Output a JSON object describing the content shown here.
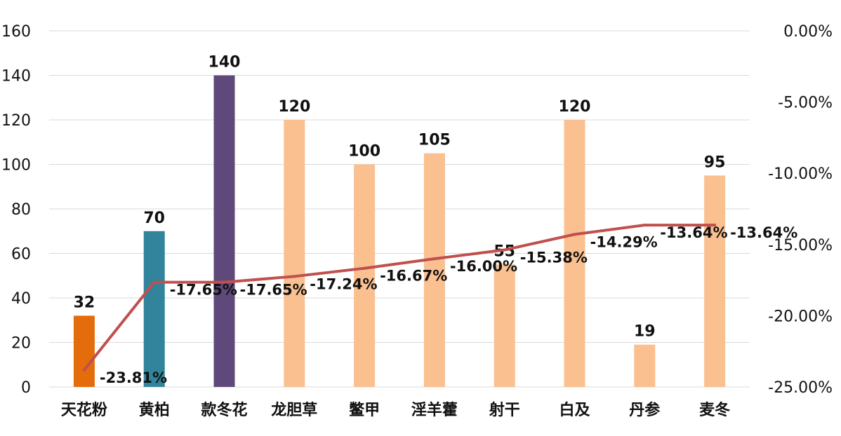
{
  "chart_data": {
    "type": "bar",
    "categories": [
      "天花粉",
      "黄柏",
      "款冬花",
      "龙胆草",
      "鳖甲",
      "淫羊藿",
      "射干",
      "白及",
      "丹参",
      "麦冬"
    ],
    "series": [
      {
        "axis": "left",
        "chart": "bar",
        "values": [
          32,
          70,
          140,
          120,
          100,
          105,
          55,
          120,
          19,
          95
        ],
        "value_labels": [
          "32",
          "70",
          "140",
          "120",
          "100",
          "105",
          "55",
          "120",
          "19",
          "95"
        ],
        "colors": [
          "#e46c0a",
          "#31849b",
          "#5f497a",
          "#fac090",
          "#fac090",
          "#fac090",
          "#fac090",
          "#fac090",
          "#fac090",
          "#fac090"
        ]
      },
      {
        "axis": "right",
        "chart": "line",
        "values": [
          -23.81,
          -17.65,
          -17.65,
          -17.24,
          -16.67,
          -16.0,
          -15.38,
          -14.29,
          -13.64,
          -13.64
        ],
        "value_labels": [
          "-23.81%",
          "-17.65%",
          "-17.65%",
          "-17.24%",
          "-16.67%",
          "-16.00%",
          "-15.38%",
          "-14.29%",
          "-13.64%",
          "-13.64%"
        ],
        "color": "#c0504d"
      }
    ],
    "y_left": {
      "ylim": [
        0,
        160
      ],
      "ticks": [
        "0",
        "20",
        "40",
        "60",
        "80",
        "100",
        "120",
        "140",
        "160"
      ]
    },
    "y_right": {
      "ylim": [
        -25,
        0
      ],
      "ticks": [
        "-25.00%",
        "-20.00%",
        "-15.00%",
        "-10.00%",
        "-5.00%",
        "0.00%"
      ]
    },
    "title": "",
    "xlabel": "",
    "ylabel": "",
    "grid": true,
    "legend": "none"
  }
}
